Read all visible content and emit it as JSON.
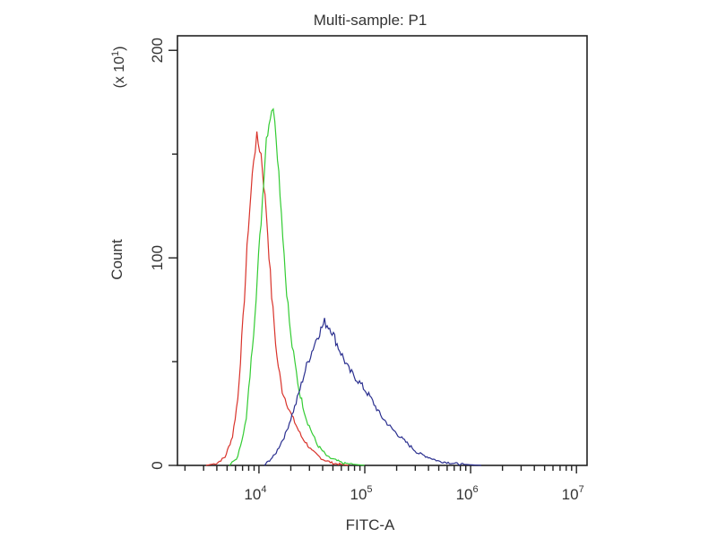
{
  "chart_data": {
    "type": "line",
    "title": "Multi-sample: P1",
    "xlabel": "FITC-A",
    "ylabel": "Count",
    "y_multiplier": "(x 10",
    "y_multiplier_exp": "1",
    "y_multiplier_close": ")",
    "x_scale": "log",
    "xlim_log10": [
      3.23,
      7.1
    ],
    "ylim": [
      0,
      207
    ],
    "x_ticks": [
      {
        "base": "10",
        "exp": "4",
        "v": 4
      },
      {
        "base": "10",
        "exp": "5",
        "v": 5
      },
      {
        "base": "10",
        "exp": "6",
        "v": 6
      },
      {
        "base": "10",
        "exp": "7",
        "v": 7
      }
    ],
    "y_ticks": [
      {
        "label": "0",
        "v": 0
      },
      {
        "label": "100",
        "v": 100
      },
      {
        "label": "200",
        "v": 200
      }
    ],
    "series": [
      {
        "name": "red",
        "color": "#d9332b",
        "points": [
          [
            3.5,
            0
          ],
          [
            3.6,
            1
          ],
          [
            3.68,
            4
          ],
          [
            3.75,
            14
          ],
          [
            3.8,
            32
          ],
          [
            3.85,
            70
          ],
          [
            3.9,
            115
          ],
          [
            3.95,
            148
          ],
          [
            3.98,
            158
          ],
          [
            4.02,
            150
          ],
          [
            4.07,
            122
          ],
          [
            4.12,
            82
          ],
          [
            4.17,
            52
          ],
          [
            4.22,
            36
          ],
          [
            4.3,
            25
          ],
          [
            4.4,
            14
          ],
          [
            4.5,
            7
          ],
          [
            4.6,
            3
          ],
          [
            4.7,
            1
          ],
          [
            4.85,
            0
          ]
        ]
      },
      {
        "name": "green",
        "color": "#33cc33",
        "points": [
          [
            3.72,
            0
          ],
          [
            3.8,
            4
          ],
          [
            3.88,
            22
          ],
          [
            3.95,
            65
          ],
          [
            4.02,
            118
          ],
          [
            4.07,
            158
          ],
          [
            4.12,
            172
          ],
          [
            4.15,
            168
          ],
          [
            4.2,
            132
          ],
          [
            4.25,
            92
          ],
          [
            4.3,
            62
          ],
          [
            4.38,
            36
          ],
          [
            4.45,
            22
          ],
          [
            4.55,
            10
          ],
          [
            4.65,
            4
          ],
          [
            4.8,
            1
          ],
          [
            5.0,
            0
          ]
        ]
      },
      {
        "name": "blue",
        "color": "#2a2f8f",
        "points": [
          [
            4.05,
            0
          ],
          [
            4.15,
            5
          ],
          [
            4.25,
            15
          ],
          [
            4.35,
            30
          ],
          [
            4.45,
            48
          ],
          [
            4.55,
            62
          ],
          [
            4.62,
            69
          ],
          [
            4.68,
            66
          ],
          [
            4.75,
            57
          ],
          [
            4.85,
            46
          ],
          [
            4.95,
            40
          ],
          [
            5.05,
            33
          ],
          [
            5.15,
            24
          ],
          [
            5.25,
            18
          ],
          [
            5.35,
            13
          ],
          [
            5.5,
            6
          ],
          [
            5.7,
            2
          ],
          [
            5.9,
            0.6
          ],
          [
            6.1,
            0
          ]
        ]
      }
    ]
  }
}
